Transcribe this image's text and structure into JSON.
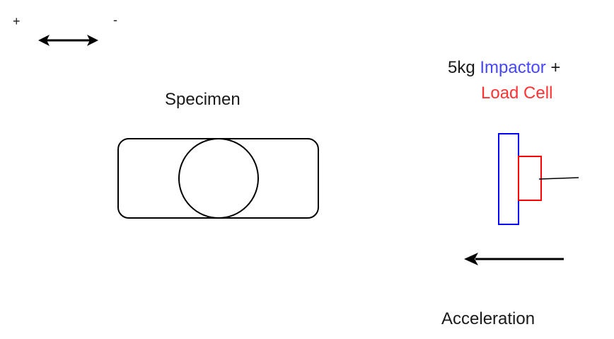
{
  "direction_key": {
    "plus": "+",
    "minus": "-"
  },
  "specimen": {
    "label": "Specimen"
  },
  "impactor": {
    "mass": "5kg",
    "name": "Impactor",
    "plus": "+",
    "load_cell": "Load Cell"
  },
  "acceleration": {
    "label": "Acceleration"
  },
  "colors": {
    "outline": "#000000",
    "impactor": "#0000ff",
    "load_cell": "#ff0000",
    "impactor_text": "#4747ff",
    "load_cell_text": "#ff3333"
  }
}
